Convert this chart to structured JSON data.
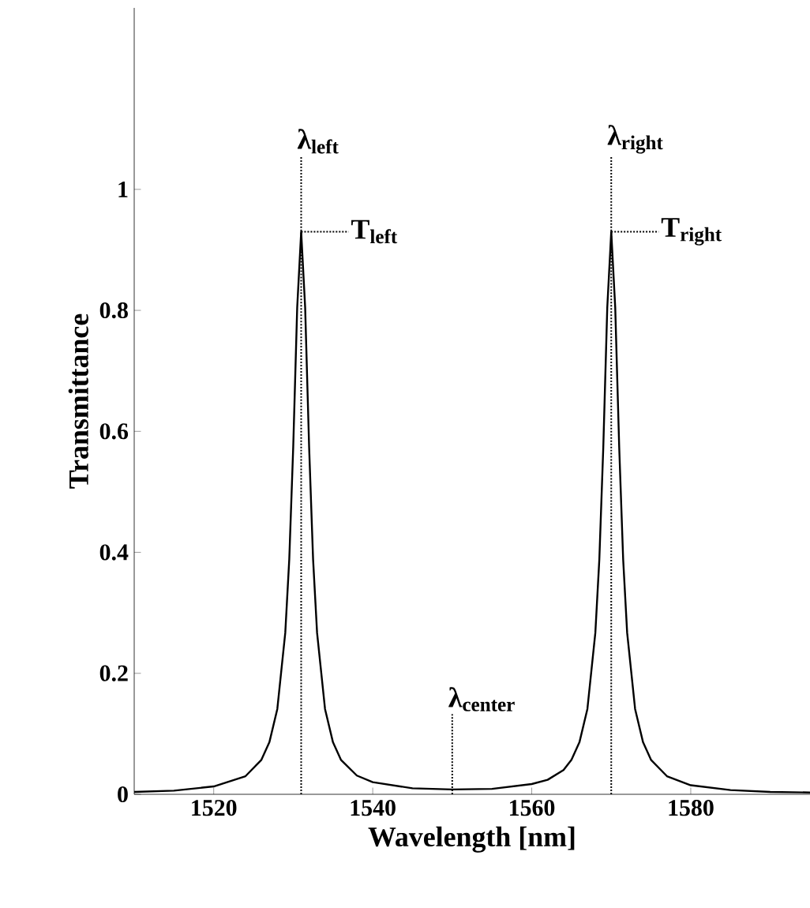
{
  "chart_data": {
    "type": "line",
    "xlabel": "Wavelength [nm]",
    "ylabel": "Transmittance",
    "xlim": [
      1510,
      1595
    ],
    "ylim": [
      0,
      1.3
    ],
    "xticks": [
      1520,
      1540,
      1560,
      1580
    ],
    "yticks": [
      0,
      0.2,
      0.4,
      0.6,
      0.8,
      1
    ],
    "series": [
      {
        "color": "#000000",
        "x": [
          1510,
          1515,
          1520,
          1524,
          1526,
          1527,
          1528,
          1529,
          1529.5,
          1530,
          1530.5,
          1531,
          1531.5,
          1532,
          1532.5,
          1533,
          1534,
          1535,
          1536,
          1538,
          1540,
          1545,
          1550,
          1555,
          1560,
          1562,
          1564,
          1565,
          1566,
          1567,
          1568,
          1568.5,
          1569,
          1569.5,
          1570,
          1570.5,
          1571,
          1571.5,
          1572,
          1573,
          1574,
          1575,
          1577,
          1580,
          1585,
          1590,
          1595
        ],
        "values": [
          0.004,
          0.006,
          0.013,
          0.03,
          0.057,
          0.086,
          0.141,
          0.267,
          0.388,
          0.574,
          0.805,
          0.93,
          0.805,
          0.574,
          0.388,
          0.267,
          0.141,
          0.086,
          0.057,
          0.031,
          0.02,
          0.01,
          0.008,
          0.009,
          0.017,
          0.024,
          0.04,
          0.057,
          0.086,
          0.141,
          0.267,
          0.388,
          0.574,
          0.805,
          0.93,
          0.805,
          0.574,
          0.388,
          0.267,
          0.141,
          0.086,
          0.057,
          0.03,
          0.015,
          0.007,
          0.004,
          0.003
        ]
      }
    ],
    "ref_lines": [
      {
        "axis": "x",
        "value": 1531,
        "label": "λ$_{left}$",
        "line_style": "dotted"
      },
      {
        "axis": "x",
        "value": 1570,
        "label": "λ$_{right}$",
        "line_style": "dotted"
      },
      {
        "axis": "x",
        "value": 1550,
        "label": "λ$_{center}$",
        "line_style": "dotted"
      }
    ],
    "annotations": [
      {
        "text": "T$_{left}$",
        "x": 1531,
        "y": 0.93
      },
      {
        "text": "T$_{right}$",
        "x": 1570,
        "y": 0.93
      }
    ],
    "grid": false
  }
}
